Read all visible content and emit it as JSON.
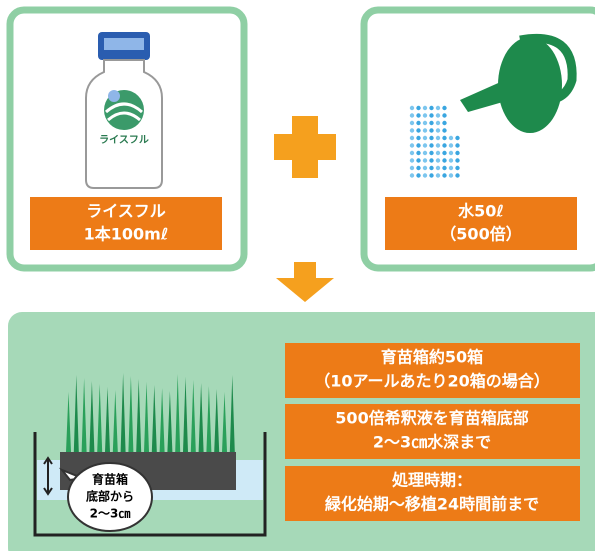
{
  "left_card": {
    "bottle_label": "ライスフル",
    "label_lines": [
      "ライスフル",
      "1本100mℓ"
    ]
  },
  "right_card": {
    "label_lines": [
      "水50ℓ",
      "（500倍）"
    ]
  },
  "bottom": {
    "boxes": [
      [
        "育苗箱約50箱",
        "（10アールあたり20箱の場合）"
      ],
      [
        "500倍希釈液を育苗箱底部",
        "2〜3㎝水深まで"
      ],
      [
        "処理時期：",
        "緑化始期〜移植24時間前まで"
      ]
    ],
    "bubble_lines": [
      "育苗箱",
      "底部から",
      "2〜3㎝"
    ]
  }
}
